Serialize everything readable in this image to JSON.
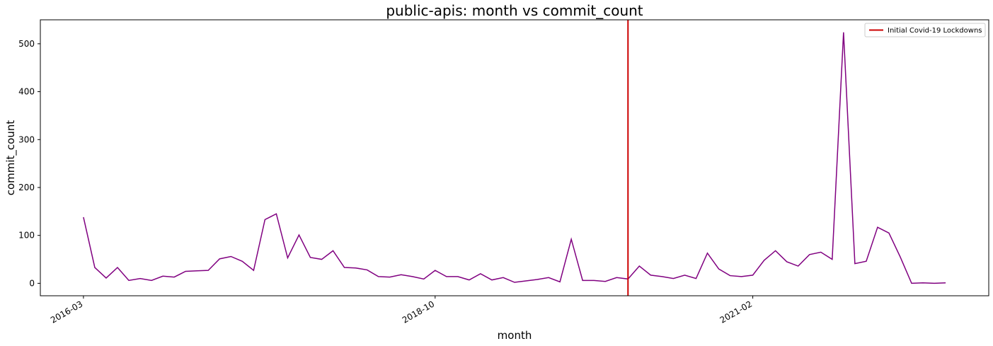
{
  "chart_data": {
    "type": "line",
    "title": "public-apis: month vs commit_count",
    "x_label": "month",
    "y_label": "commit_count",
    "x": [
      "2016-03",
      "2016-04",
      "2016-05",
      "2016-06",
      "2016-07",
      "2016-08",
      "2016-09",
      "2016-10",
      "2016-11",
      "2016-12",
      "2017-01",
      "2017-02",
      "2017-03",
      "2017-04",
      "2017-05",
      "2017-06",
      "2017-07",
      "2017-08",
      "2017-09",
      "2017-10",
      "2017-11",
      "2017-12",
      "2018-01",
      "2018-02",
      "2018-03",
      "2018-04",
      "2018-05",
      "2018-06",
      "2018-07",
      "2018-08",
      "2018-09",
      "2018-10",
      "2018-11",
      "2018-12",
      "2019-01",
      "2019-02",
      "2019-03",
      "2019-04",
      "2019-05",
      "2019-06",
      "2019-07",
      "2019-08",
      "2019-09",
      "2019-10",
      "2019-11",
      "2019-12",
      "2020-01",
      "2020-02",
      "2020-03",
      "2020-04",
      "2020-05",
      "2020-06",
      "2020-07",
      "2020-08",
      "2020-09",
      "2020-10",
      "2020-11",
      "2020-12",
      "2021-01",
      "2021-02",
      "2021-03",
      "2021-04",
      "2021-05",
      "2021-06",
      "2021-07",
      "2021-08",
      "2021-09",
      "2021-10",
      "2021-11",
      "2021-12",
      "2022-01",
      "2022-02",
      "2022-03",
      "2022-04",
      "2022-05",
      "2022-06",
      "2022-07"
    ],
    "series": [
      {
        "name": "commit_count",
        "color": "#800080",
        "values": [
          138,
          33,
          11,
          33,
          6,
          10,
          6,
          15,
          13,
          25,
          26,
          27,
          51,
          56,
          46,
          27,
          133,
          145,
          53,
          101,
          54,
          50,
          68,
          33,
          32,
          28,
          14,
          13,
          18,
          14,
          9,
          27,
          14,
          14,
          7,
          20,
          7,
          12,
          2,
          5,
          8,
          12,
          3,
          92,
          6,
          6,
          4,
          12,
          9,
          36,
          17,
          14,
          10,
          17,
          10,
          63,
          30,
          16,
          14,
          17,
          48,
          68,
          45,
          36,
          60,
          65,
          50,
          524,
          41,
          46,
          117,
          105,
          55,
          0,
          1,
          0,
          1
        ]
      }
    ],
    "xticks": [
      "2016-03",
      "2018-10",
      "2021-02"
    ],
    "ylim": [
      -26,
      550
    ],
    "yticks": [
      0,
      100,
      200,
      300,
      400,
      500
    ],
    "vline": {
      "x": "2020-03",
      "name": "Initial Covid-19 Lockdowns",
      "color": "#cc0000"
    },
    "legend": "upper right",
    "grid": false
  }
}
